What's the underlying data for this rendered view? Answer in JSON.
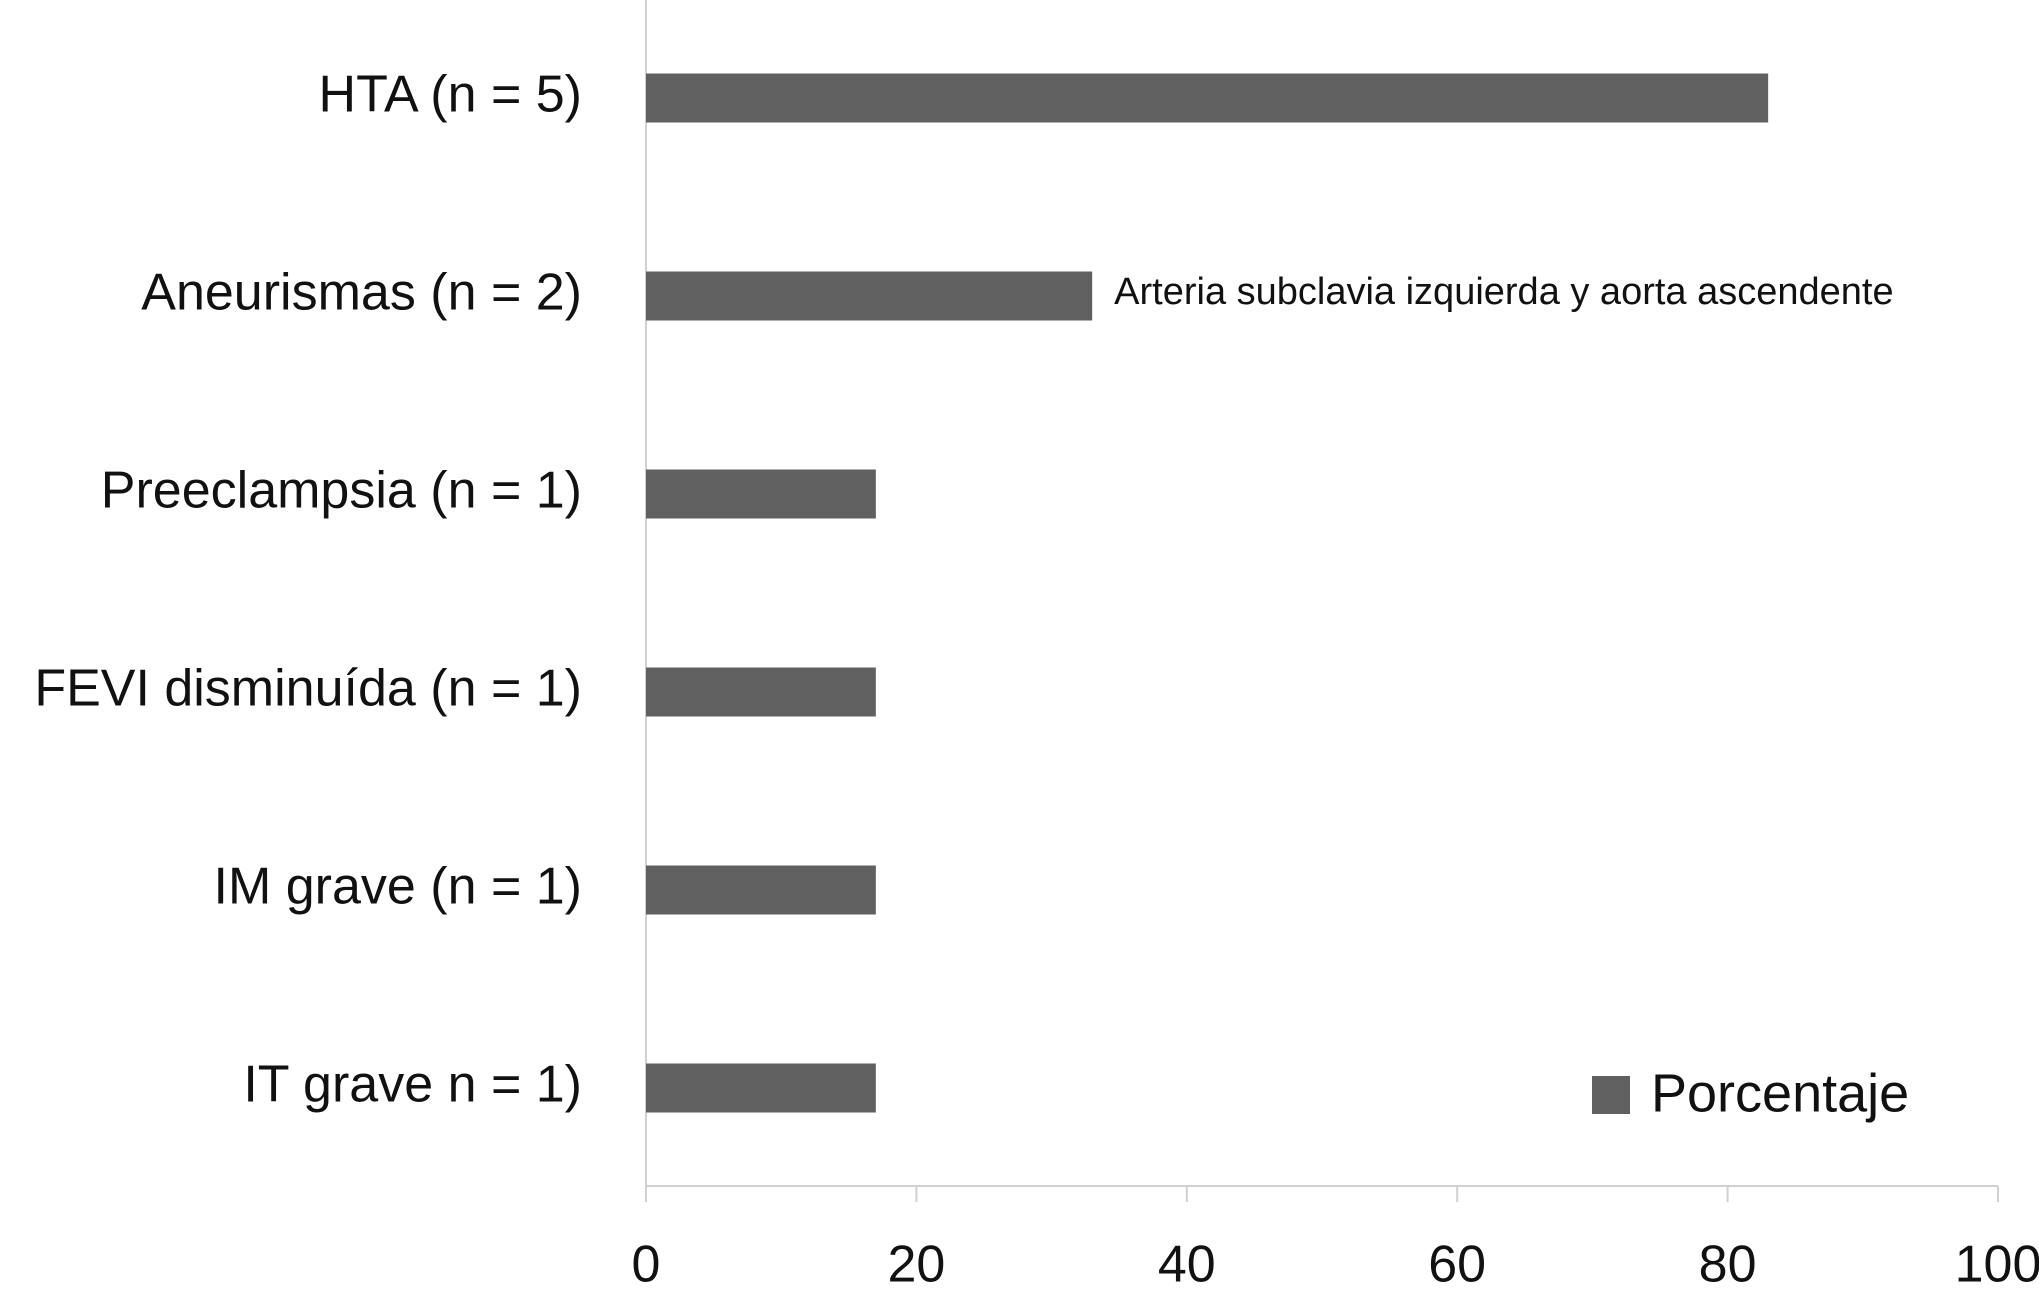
{
  "chart_data": {
    "type": "bar",
    "orientation": "horizontal",
    "categories": [
      "HTA (n = 5)",
      "Aneurismas (n = 2)",
      "Preeclampsia (n = 1)",
      "FEVI disminuída (n = 1)",
      "IM grave (n = 1)",
      "IT grave n = 1)"
    ],
    "series": [
      {
        "name": "Porcentaje",
        "color": "#606060",
        "values": [
          83,
          33,
          17,
          17,
          17,
          17
        ]
      }
    ],
    "annotation": "Arteria subclavia izquierda y aorta ascendente",
    "xlim": [
      0,
      100
    ],
    "xticks": [
      0,
      20,
      40,
      60,
      80,
      100
    ],
    "grid": false,
    "legend": "lower right"
  }
}
